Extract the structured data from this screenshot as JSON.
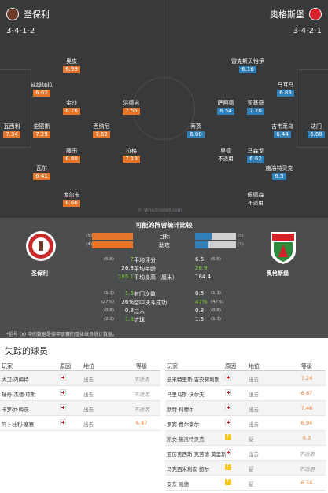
{
  "home": {
    "name": "圣保利",
    "formation": "3-4-1-2",
    "players": [
      {
        "name": "瓦西利",
        "rating": "7.34"
      },
      {
        "name": "史密斯",
        "rating": "7.29"
      },
      {
        "name": "瓦尔",
        "rating": "6.41"
      },
      {
        "name": "兹缇加拉",
        "rating": "6.62"
      },
      {
        "name": "奥皮",
        "rating": "6.99"
      },
      {
        "name": "金沙",
        "rating": "6.76"
      },
      {
        "name": "西纳尼",
        "rating": "7.62"
      },
      {
        "name": "藤田",
        "rating": "6.80"
      },
      {
        "name": "庞尔卡",
        "rating": "6.66"
      },
      {
        "name": "洪德吉",
        "rating": "7.56"
      },
      {
        "name": "拉格",
        "rating": "7.18"
      }
    ]
  },
  "away": {
    "name": "奥格斯堡",
    "formation": "3-4-2-1",
    "players": [
      {
        "name": "达门",
        "rating": "6.68"
      },
      {
        "name": "马耳马",
        "rating": "6.83"
      },
      {
        "name": "古韦莱乌",
        "rating": "6.44"
      },
      {
        "name": "施洛特贝克",
        "rating": "6.3"
      },
      {
        "name": "雷克斯贝怡伊",
        "rating": "6.16"
      },
      {
        "name": "萨阿德",
        "rating": "6.54"
      },
      {
        "name": "亚基奇",
        "rating": "7.70"
      },
      {
        "name": "马森戈",
        "rating": "6.62"
      },
      {
        "name": "蒂茨",
        "rating": "6.00"
      },
      {
        "name": "里德",
        "rating": "不适用"
      },
      {
        "name": "佩德森",
        "rating": "不适用"
      }
    ]
  },
  "watermark": "© WhoScored.com",
  "comparison": {
    "title": "可能的阵容统计比较",
    "note": "*括号 (x) 中的数据是德甲联赛的整体球员统计数据。",
    "goals": {
      "label": "目标",
      "home": "5",
      "home_pre": "(5)",
      "away": "2",
      "away_pre": "(5)",
      "home_frac": 1.0,
      "away_frac": 0.4
    },
    "assists": {
      "label": "助攻",
      "home": "3",
      "home_pre": "(4)",
      "away": "1",
      "away_pre": "(1)",
      "home_frac": 1.0,
      "away_frac": 0.33
    },
    "rows_a": [
      {
        "label": "平均评分",
        "home_pre": "(6.8)",
        "home": "7",
        "away": "6.6",
        "away_pre": "(6.6)",
        "green_home": true,
        "green_away": false
      },
      {
        "label": "平均年龄",
        "home_pre": "",
        "home": "26.3",
        "away": "26.9",
        "away_pre": "",
        "green_home": false,
        "green_away": true
      },
      {
        "label": "平均身高（厘米）",
        "home_pre": "",
        "home": "185.1",
        "away": "184.4",
        "away_pre": "",
        "green_home": true,
        "green_away": false
      }
    ],
    "rows_b": [
      {
        "label": "射门次数",
        "home_pre": "(1.3)",
        "home": "1.3",
        "away": "0.8",
        "away_pre": "(1.1)",
        "green_home": true,
        "green_away": false
      },
      {
        "label": "空中决斗成功",
        "home_pre": "(27%)",
        "home": "26%",
        "away": "47%",
        "away_pre": "(47%)",
        "green_home": false,
        "green_away": true
      },
      {
        "label": "过人",
        "home_pre": "(0.8)",
        "home": "0.8",
        "away": "0.8",
        "away_pre": "(0.8)",
        "green_home": false,
        "green_away": false
      },
      {
        "label": "铲球",
        "home_pre": "(2.2)",
        "home": "1.8",
        "away": "1.3",
        "away_pre": "(1.3)",
        "green_home": true,
        "green_away": false
      }
    ]
  },
  "missing": {
    "title": "失踪的球员",
    "headers": {
      "player": "玩家",
      "reason": "原因",
      "position": "地位",
      "rating": "等级"
    },
    "home": [
      {
        "player": "大卫·内梅特",
        "reason": "injury",
        "position": "出去",
        "rating": "不适用"
      },
      {
        "player": "瑞奇-杰德·琼斯",
        "reason": "injury",
        "position": "出去",
        "rating": "不适用"
      },
      {
        "player": "卡罗尔·梅茨",
        "reason": "injury",
        "position": "出去",
        "rating": "不适用"
      },
      {
        "player": "阿卜杜利·塞赛",
        "reason": "injury",
        "position": "出去",
        "rating": "6.47"
      }
    ],
    "away": [
      {
        "player": "迪米特里斯·吉安努利斯",
        "reason": "injury",
        "position": "出去",
        "rating": "7.24"
      },
      {
        "player": "马里乌斯·沃尔夫",
        "reason": "injury",
        "position": "出去",
        "rating": "6.87"
      },
      {
        "player": "默特·科穆尔",
        "reason": "injury",
        "position": "出去",
        "rating": "7.46"
      },
      {
        "player": "罗宾·费尔豪尔",
        "reason": "injury",
        "position": "出去",
        "rating": "6.94"
      },
      {
        "player": "凯文·施洛特贝克",
        "reason": "doubtful",
        "position": "疑",
        "rating": "6.3"
      },
      {
        "player": "亚历克西斯·克劳德·莫里斯",
        "reason": "injury",
        "position": "出去",
        "rating": "不适用"
      },
      {
        "player": "马克西米利安·鲍尔",
        "reason": "doubtful",
        "position": "疑",
        "rating": "不适用"
      },
      {
        "player": "安东·凯德",
        "reason": "doubtful",
        "position": "疑",
        "rating": "6.24"
      }
    ]
  },
  "colors": {
    "home_accent": "#e5752b",
    "away_accent": "#2f80b9",
    "better": "#7fd03a"
  }
}
